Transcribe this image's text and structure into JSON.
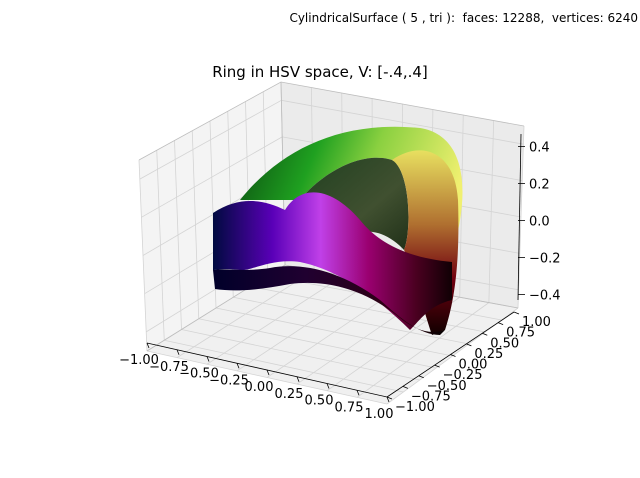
{
  "figure": {
    "suptitle": "CylindricalSurface ( 5 , tri ):  faces: 12288,  vertices: 6240",
    "background": "#ffffff"
  },
  "chart_data": {
    "type": "surface3d",
    "title": "Ring in HSV space, V: [-.4,.4]",
    "xlabel": "",
    "ylabel": "",
    "zlabel": "",
    "xlim": [
      -1.0,
      1.0
    ],
    "ylim": [
      -1.0,
      1.0
    ],
    "zlim": [
      -0.5,
      0.5
    ],
    "x_ticks": [
      "−1.00",
      "−0.75",
      "−0.50",
      "−0.25",
      "0.00",
      "0.25",
      "0.50",
      "0.75",
      "1.00"
    ],
    "y_ticks": [
      "−1.00",
      "−0.75",
      "−0.50",
      "−0.25",
      "0.00",
      "0.25",
      "0.50",
      "0.75",
      "1.00"
    ],
    "z_ticks": [
      "−0.4",
      "−0.2",
      "0.0",
      "0.2",
      "0.4"
    ],
    "grid": true,
    "surface": {
      "shape": "cylindrical ring (annulus) with wavy height",
      "coloring": "HSV (hue by angle, saturation by radius, value by height)",
      "faces": 12288,
      "vertices": 6240
    },
    "pane_color": "#f2f2f2",
    "grid_color": "#d9d9d9"
  }
}
